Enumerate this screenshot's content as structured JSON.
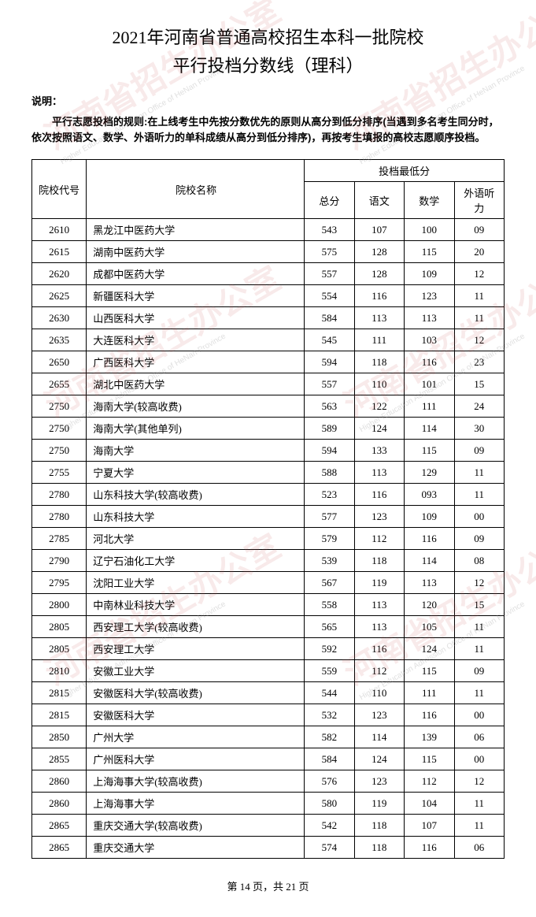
{
  "title_line1": "2021年河南省普通高校招生本科一批院校",
  "title_line2": "平行投档分数线（理科）",
  "note_label": "说明：",
  "note_text": "平行志愿投档的规则:在上线考生中先按分数优先的原则从高分到低分排序(当遇到多名考生同分时，依次按照语文、数学、外语听力的单科成绩从高分到低分排序)，再按考生填报的高校志愿顺序投档。",
  "headers": {
    "code": "院校代号",
    "name": "院校名称",
    "score_group": "投档最低分",
    "total": "总分",
    "chinese": "语文",
    "math": "数学",
    "listening": "外语听力"
  },
  "rows": [
    {
      "code": "2610",
      "name": "黑龙江中医药大学",
      "total": "543",
      "chinese": "107",
      "math": "100",
      "listening": "09"
    },
    {
      "code": "2615",
      "name": "湖南中医药大学",
      "total": "575",
      "chinese": "128",
      "math": "115",
      "listening": "20"
    },
    {
      "code": "2620",
      "name": "成都中医药大学",
      "total": "557",
      "chinese": "128",
      "math": "109",
      "listening": "12"
    },
    {
      "code": "2625",
      "name": "新疆医科大学",
      "total": "554",
      "chinese": "116",
      "math": "123",
      "listening": "11"
    },
    {
      "code": "2630",
      "name": "山西医科大学",
      "total": "584",
      "chinese": "113",
      "math": "113",
      "listening": "11"
    },
    {
      "code": "2635",
      "name": "大连医科大学",
      "total": "545",
      "chinese": "111",
      "math": "103",
      "listening": "12"
    },
    {
      "code": "2650",
      "name": "广西医科大学",
      "total": "594",
      "chinese": "118",
      "math": "116",
      "listening": "23"
    },
    {
      "code": "2655",
      "name": "湖北中医药大学",
      "total": "557",
      "chinese": "110",
      "math": "101",
      "listening": "15"
    },
    {
      "code": "2750",
      "name": "海南大学(较高收费)",
      "total": "563",
      "chinese": "122",
      "math": "111",
      "listening": "24"
    },
    {
      "code": "2750",
      "name": "海南大学(其他单列)",
      "total": "589",
      "chinese": "124",
      "math": "114",
      "listening": "30"
    },
    {
      "code": "2750",
      "name": "海南大学",
      "total": "594",
      "chinese": "133",
      "math": "115",
      "listening": "09"
    },
    {
      "code": "2755",
      "name": "宁夏大学",
      "total": "588",
      "chinese": "113",
      "math": "129",
      "listening": "11"
    },
    {
      "code": "2780",
      "name": "山东科技大学(较高收费)",
      "total": "523",
      "chinese": "116",
      "math": "093",
      "listening": "11"
    },
    {
      "code": "2780",
      "name": "山东科技大学",
      "total": "577",
      "chinese": "123",
      "math": "109",
      "listening": "00"
    },
    {
      "code": "2785",
      "name": "河北大学",
      "total": "579",
      "chinese": "112",
      "math": "116",
      "listening": "09"
    },
    {
      "code": "2790",
      "name": "辽宁石油化工大学",
      "total": "539",
      "chinese": "118",
      "math": "114",
      "listening": "08"
    },
    {
      "code": "2795",
      "name": "沈阳工业大学",
      "total": "567",
      "chinese": "119",
      "math": "113",
      "listening": "12"
    },
    {
      "code": "2800",
      "name": "中南林业科技大学",
      "total": "558",
      "chinese": "113",
      "math": "120",
      "listening": "15"
    },
    {
      "code": "2805",
      "name": "西安理工大学(较高收费)",
      "total": "565",
      "chinese": "113",
      "math": "105",
      "listening": "11"
    },
    {
      "code": "2805",
      "name": "西安理工大学",
      "total": "592",
      "chinese": "116",
      "math": "124",
      "listening": "11"
    },
    {
      "code": "2810",
      "name": "安徽工业大学",
      "total": "559",
      "chinese": "112",
      "math": "115",
      "listening": "09"
    },
    {
      "code": "2815",
      "name": "安徽医科大学(较高收费)",
      "total": "544",
      "chinese": "110",
      "math": "111",
      "listening": "11"
    },
    {
      "code": "2815",
      "name": "安徽医科大学",
      "total": "532",
      "chinese": "123",
      "math": "116",
      "listening": "00"
    },
    {
      "code": "2850",
      "name": "广州大学",
      "total": "582",
      "chinese": "114",
      "math": "139",
      "listening": "06"
    },
    {
      "code": "2855",
      "name": "广州医科大学",
      "total": "584",
      "chinese": "124",
      "math": "115",
      "listening": "00"
    },
    {
      "code": "2860",
      "name": "上海海事大学(较高收费)",
      "total": "576",
      "chinese": "123",
      "math": "112",
      "listening": "12"
    },
    {
      "code": "2860",
      "name": "上海海事大学",
      "total": "580",
      "chinese": "119",
      "math": "104",
      "listening": "11"
    },
    {
      "code": "2865",
      "name": "重庆交通大学(较高收费)",
      "total": "542",
      "chinese": "118",
      "math": "107",
      "listening": "11"
    },
    {
      "code": "2865",
      "name": "重庆交通大学",
      "total": "574",
      "chinese": "118",
      "math": "116",
      "listening": "06"
    }
  ],
  "pager": "第 14 页，共 21 页",
  "watermark": {
    "main": "河南省招生办公室",
    "sub": "Higher Education Admission Office of HeNan Province"
  }
}
